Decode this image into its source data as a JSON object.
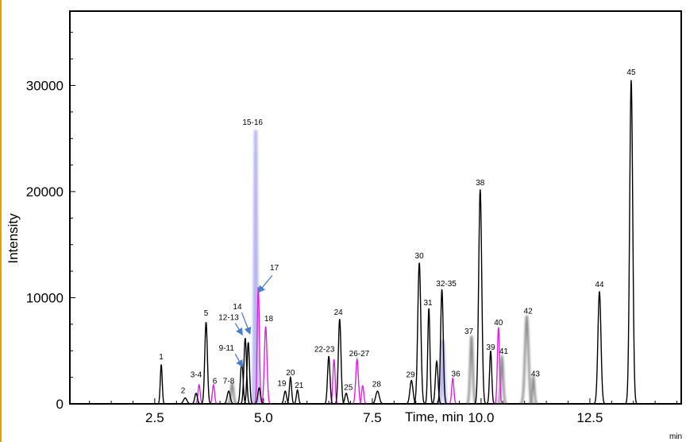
{
  "chart_data": {
    "type": "line",
    "xlabel": "Time, min",
    "ylabel": "Intensity",
    "corner_label": "min",
    "xlim": [
      0.55,
      14.6
    ],
    "ylim": [
      0,
      37000
    ],
    "x_ticks": [
      {
        "value": 2.5,
        "label": "2.5"
      },
      {
        "value": 5.0,
        "label": "5.0"
      },
      {
        "value": 7.5,
        "label": "7.5"
      },
      {
        "value": 10.0,
        "label": "10.0"
      },
      {
        "value": 12.5,
        "label": "12.5"
      }
    ],
    "y_ticks": [
      {
        "value": 0,
        "label": "0"
      },
      {
        "value": 10000,
        "label": "10000"
      },
      {
        "value": 20000,
        "label": "20000"
      },
      {
        "value": 30000,
        "label": "30000"
      }
    ],
    "colors": {
      "black": "#000000",
      "magenta": "#e020e0",
      "gray": "#8a8a8a",
      "lavender": "#b8b8f0",
      "arrow": "#4a7ec8",
      "frame_edge": "#e8a000"
    },
    "series": [
      {
        "color": "black",
        "peaks": [
          {
            "x": 2.65,
            "h": 3700,
            "w": 0.022
          },
          {
            "x": 3.2,
            "h": 550,
            "w": 0.04
          },
          {
            "x": 3.45,
            "h": 1000,
            "w": 0.03
          },
          {
            "x": 3.68,
            "h": 7700,
            "w": 0.03
          },
          {
            "x": 4.2,
            "h": 1200,
            "w": 0.035
          },
          {
            "x": 4.5,
            "h": 4000,
            "w": 0.03
          },
          {
            "x": 4.58,
            "h": 6200,
            "w": 0.03
          },
          {
            "x": 4.65,
            "h": 5800,
            "w": 0.028
          },
          {
            "x": 4.9,
            "h": 1500,
            "w": 0.03
          },
          {
            "x": 5.5,
            "h": 1200,
            "w": 0.03
          },
          {
            "x": 5.62,
            "h": 2500,
            "w": 0.025
          },
          {
            "x": 5.78,
            "h": 1300,
            "w": 0.025
          },
          {
            "x": 6.5,
            "h": 4500,
            "w": 0.028
          },
          {
            "x": 6.75,
            "h": 8000,
            "w": 0.03
          },
          {
            "x": 6.9,
            "h": 1000,
            "w": 0.03
          },
          {
            "x": 7.62,
            "h": 1200,
            "w": 0.04
          },
          {
            "x": 8.4,
            "h": 2200,
            "w": 0.035
          },
          {
            "x": 8.58,
            "h": 13300,
            "w": 0.035
          },
          {
            "x": 8.8,
            "h": 9000,
            "w": 0.025
          },
          {
            "x": 8.98,
            "h": 4000,
            "w": 0.03
          },
          {
            "x": 9.1,
            "h": 10800,
            "w": 0.03
          },
          {
            "x": 9.98,
            "h": 20200,
            "w": 0.035
          },
          {
            "x": 10.22,
            "h": 5000,
            "w": 0.025
          },
          {
            "x": 12.72,
            "h": 10600,
            "w": 0.035
          },
          {
            "x": 13.45,
            "h": 30500,
            "w": 0.035
          }
        ]
      },
      {
        "color": "magenta",
        "peaks": [
          {
            "x": 3.52,
            "h": 1800,
            "w": 0.025
          },
          {
            "x": 3.85,
            "h": 1800,
            "w": 0.025
          },
          {
            "x": 4.88,
            "h": 11000,
            "w": 0.025
          },
          {
            "x": 5.05,
            "h": 7300,
            "w": 0.03
          },
          {
            "x": 6.62,
            "h": 4200,
            "w": 0.025
          },
          {
            "x": 7.15,
            "h": 4200,
            "w": 0.03
          },
          {
            "x": 7.28,
            "h": 1700,
            "w": 0.025
          },
          {
            "x": 9.35,
            "h": 2400,
            "w": 0.025
          },
          {
            "x": 10.4,
            "h": 7200,
            "w": 0.025
          }
        ]
      },
      {
        "color": "gray",
        "peaks": [
          {
            "x": 4.28,
            "h": 1900,
            "w": 0.03
          },
          {
            "x": 9.78,
            "h": 6400,
            "w": 0.03
          },
          {
            "x": 10.48,
            "h": 4400,
            "w": 0.028
          },
          {
            "x": 11.05,
            "h": 8300,
            "w": 0.04
          },
          {
            "x": 11.2,
            "h": 2500,
            "w": 0.025
          }
        ]
      },
      {
        "color": "lavender",
        "peaks": [
          {
            "x": 4.82,
            "h": 25800,
            "w": 0.02
          },
          {
            "x": 9.12,
            "h": 6000,
            "w": 0.025
          }
        ]
      }
    ],
    "annotations": [
      {
        "text": "1",
        "x": 2.65,
        "y": 4200
      },
      {
        "text": "2",
        "x": 3.15,
        "y": 1000
      },
      {
        "text": "3-4",
        "x": 3.45,
        "y": 2500
      },
      {
        "text": "5",
        "x": 3.68,
        "y": 8300
      },
      {
        "text": "6",
        "x": 3.88,
        "y": 1900
      },
      {
        "text": "7-8",
        "x": 4.2,
        "y": 1900
      },
      {
        "text": "9-11",
        "x": 4.15,
        "y": 5000
      },
      {
        "text": "12-13",
        "x": 4.2,
        "y": 7900
      },
      {
        "text": "14",
        "x": 4.4,
        "y": 8900
      },
      {
        "text": "15-16",
        "x": 4.75,
        "y": 26300
      },
      {
        "text": "17",
        "x": 5.25,
        "y": 12600
      },
      {
        "text": "18",
        "x": 5.12,
        "y": 7800
      },
      {
        "text": "19",
        "x": 5.42,
        "y": 1700
      },
      {
        "text": "20",
        "x": 5.62,
        "y": 2700
      },
      {
        "text": "21",
        "x": 5.82,
        "y": 1500
      },
      {
        "text": "22-23",
        "x": 6.4,
        "y": 4900
      },
      {
        "text": "24",
        "x": 6.72,
        "y": 8400
      },
      {
        "text": "25",
        "x": 6.95,
        "y": 1300
      },
      {
        "text": "26-27",
        "x": 7.2,
        "y": 4500
      },
      {
        "text": "28",
        "x": 7.6,
        "y": 1600
      },
      {
        "text": "29",
        "x": 8.38,
        "y": 2500
      },
      {
        "text": "30",
        "x": 8.58,
        "y": 13700
      },
      {
        "text": "31",
        "x": 8.78,
        "y": 9300
      },
      {
        "text": "32-35",
        "x": 9.2,
        "y": 11100
      },
      {
        "text": "36",
        "x": 9.42,
        "y": 2600
      },
      {
        "text": "37",
        "x": 9.72,
        "y": 6600
      },
      {
        "text": "38",
        "x": 9.98,
        "y": 20600
      },
      {
        "text": "39",
        "x": 10.22,
        "y": 5100
      },
      {
        "text": "40",
        "x": 10.4,
        "y": 7400
      },
      {
        "text": "41",
        "x": 10.52,
        "y": 4700
      },
      {
        "text": "42",
        "x": 11.08,
        "y": 8500
      },
      {
        "text": "43",
        "x": 11.25,
        "y": 2600
      },
      {
        "text": "44",
        "x": 12.72,
        "y": 11000
      },
      {
        "text": "45",
        "x": 13.45,
        "y": 31000
      }
    ],
    "arrows": [
      {
        "from": [
          5.2,
          12100
        ],
        "to": [
          4.9,
          10600
        ]
      },
      {
        "from": [
          4.5,
          8600
        ],
        "to": [
          4.68,
          6700
        ]
      },
      {
        "from": [
          4.35,
          7600
        ],
        "to": [
          4.5,
          6600
        ]
      },
      {
        "from": [
          4.35,
          4700
        ],
        "to": [
          4.5,
          3600
        ]
      }
    ]
  }
}
